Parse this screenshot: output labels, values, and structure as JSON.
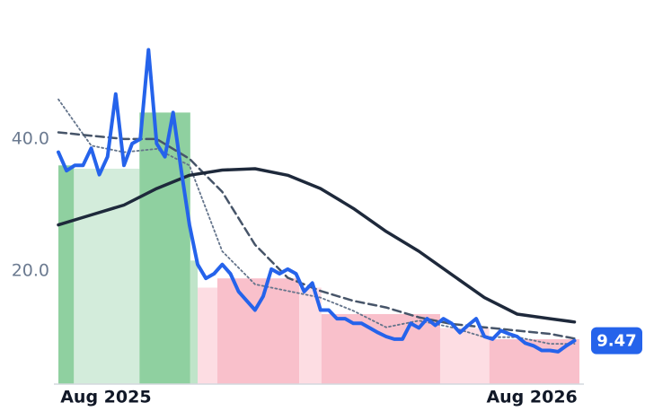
{
  "chart_data": {
    "type": "line",
    "x": [
      0,
      1,
      2,
      3,
      4,
      5,
      6,
      7,
      8,
      9,
      10,
      11,
      12,
      13,
      14,
      15,
      16,
      17,
      18,
      19,
      20,
      21,
      22,
      23,
      24,
      25,
      26,
      27,
      28,
      29,
      30,
      31,
      32,
      33,
      34,
      35,
      36,
      37,
      38,
      39,
      40,
      41,
      42,
      43,
      44,
      45,
      46,
      47,
      48,
      49,
      50,
      51,
      52,
      53,
      54,
      55,
      56,
      57,
      58,
      59,
      60,
      61,
      62,
      63
    ],
    "xlim": [
      0,
      63.6
    ],
    "xticks": [
      {
        "value": 5.8,
        "label": "Aug 2025"
      },
      {
        "value": 57.8,
        "label": "Aug 2026"
      }
    ],
    "ylim": [
      2.9,
      55.6
    ],
    "yticks": [
      {
        "value": 20,
        "label": "20.0"
      },
      {
        "value": 40,
        "label": "40.0"
      }
    ],
    "grid": false,
    "bands": [
      {
        "x": [
          0,
          1.9
        ],
        "value": 36,
        "color": "#8fd0a0"
      },
      {
        "x": [
          1.9,
          9.9
        ],
        "value": 35.5,
        "color": "#d3ecdb"
      },
      {
        "x": [
          9.9,
          16.1
        ],
        "value": 44,
        "color": "#8fd0a0"
      },
      {
        "x": [
          16.1,
          17
        ],
        "value": 21.6,
        "color": "#bfe4c9"
      },
      {
        "x": [
          17,
          19.4
        ],
        "value": 17.5,
        "color": "#fddde3"
      },
      {
        "x": [
          19.4,
          29.4
        ],
        "value": 18.9,
        "color": "#f9c0cb"
      },
      {
        "x": [
          29.4,
          32.1
        ],
        "value": 17.5,
        "color": "#fddde3"
      },
      {
        "x": [
          32.1,
          46.6
        ],
        "value": 13.5,
        "color": "#f9c0cb"
      },
      {
        "x": [
          46.6,
          52.6
        ],
        "value": 11.4,
        "color": "#fddde3"
      },
      {
        "x": [
          52.6,
          63.6
        ],
        "value": 9.7,
        "color": "#f9c0cb"
      }
    ],
    "series": [
      {
        "color": "#2563eb",
        "style": "solid",
        "width": 4,
        "values": [
          38,
          35.2,
          36,
          36,
          38.6,
          34.6,
          37.3,
          46.8,
          36,
          39.3,
          40,
          53.5,
          39.3,
          37.3,
          44,
          35.2,
          27,
          21,
          18.9,
          19.6,
          21,
          19.6,
          16.9,
          15.5,
          14.1,
          16.2,
          20.3,
          19.6,
          20.3,
          19.6,
          16.9,
          18.2,
          14.1,
          14.1,
          12.8,
          12.8,
          12.1,
          12.1,
          11.4,
          10.7,
          10.1,
          9.7,
          9.7,
          12.1,
          11.4,
          12.8,
          11.8,
          12.8,
          12.1,
          10.7,
          11.8,
          12.8,
          10.1,
          9.7,
          11,
          10.5,
          10.1,
          9.1,
          8.7,
          8,
          8,
          7.8,
          8.7,
          9.47
        ]
      },
      {
        "color": "#1e293b",
        "style": "solid",
        "width": 3.5,
        "x": [
          0,
          4,
          8,
          12,
          16,
          20,
          24,
          28,
          32,
          36,
          40,
          44,
          48,
          52,
          56,
          60,
          63
        ],
        "values": [
          27,
          28.5,
          30,
          32.5,
          34.5,
          35.3,
          35.5,
          34.5,
          32.5,
          29.5,
          26,
          23,
          19.5,
          16,
          13.5,
          12.8,
          12.3
        ]
      },
      {
        "color": "#475569",
        "style": "dashed",
        "width": 2.5,
        "x": [
          0,
          4,
          8,
          12,
          16,
          20,
          24,
          28,
          32,
          36,
          40,
          44,
          48,
          52,
          56,
          60,
          63
        ],
        "values": [
          41,
          40.5,
          40,
          40,
          37,
          32,
          24,
          19,
          17,
          15.5,
          14.5,
          13,
          12,
          11.5,
          11,
          10.5,
          9.8
        ]
      },
      {
        "color": "#64748b",
        "style": "dotted",
        "width": 1.8,
        "x": [
          0,
          4,
          8,
          12,
          16,
          20,
          24,
          28,
          32,
          36,
          40,
          44,
          48,
          52,
          56,
          60,
          63
        ],
        "values": [
          46,
          39,
          38,
          38.5,
          36,
          23,
          18,
          17,
          16,
          14,
          11.5,
          12.5,
          11.5,
          10,
          10,
          9,
          9
        ]
      }
    ]
  }
}
